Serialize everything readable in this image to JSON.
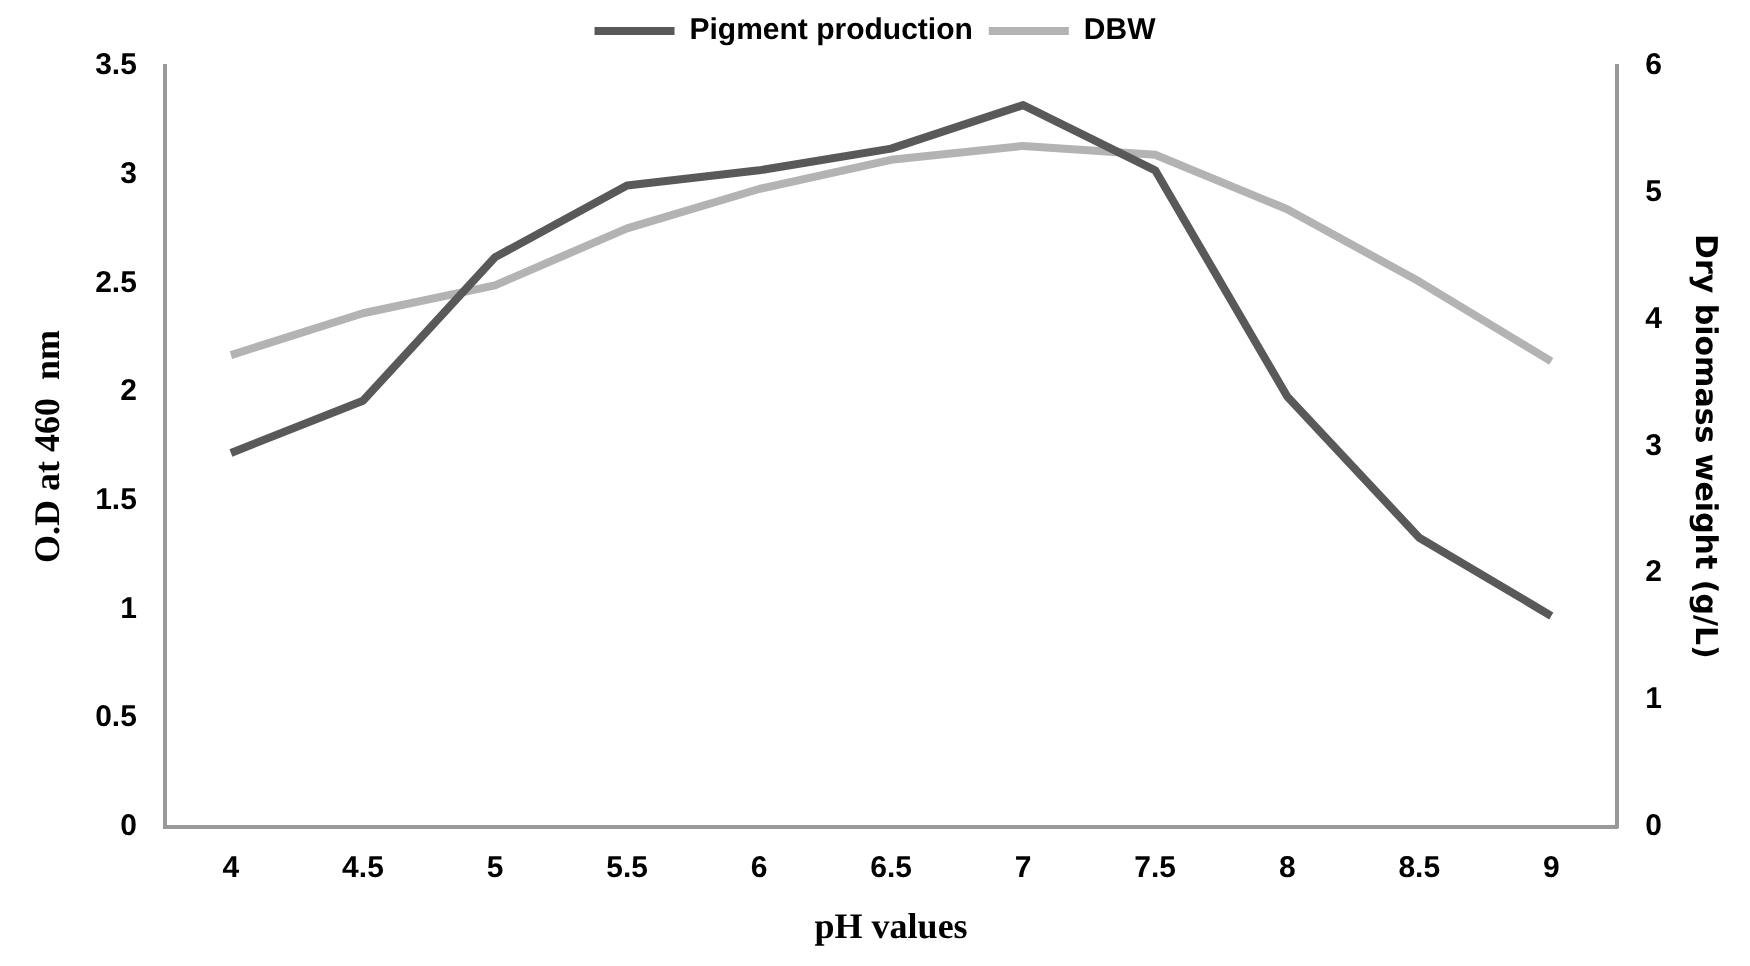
{
  "chart_data": {
    "type": "line",
    "xlabel": "pH values",
    "ylabel": "O.D at 460  nm",
    "y2label": "Dry biomass weight (g/L)",
    "categories": [
      "4",
      "4.5",
      "5",
      "5.5",
      "6",
      "6.5",
      "7",
      "7.5",
      "8",
      "8.5",
      "9"
    ],
    "series": [
      {
        "name": "Pigment production",
        "color": "#595959",
        "values": [
          1.72,
          1.96,
          2.62,
          2.95,
          3.02,
          3.12,
          3.32,
          3.02,
          1.98,
          1.33,
          0.97
        ]
      },
      {
        "name": "DBW",
        "color": "#b3b3b3",
        "axis": "y2",
        "values": [
          3.72,
          4.05,
          4.27,
          4.72,
          5.03,
          5.26,
          5.37,
          5.3,
          4.87,
          4.3,
          3.67
        ]
      }
    ],
    "ylim": [
      0,
      3.5
    ],
    "yticks": [
      0,
      0.5,
      1,
      1.5,
      2,
      2.5,
      3,
      3.5
    ],
    "y2lim": [
      0,
      6
    ],
    "y2ticks": [
      0,
      1,
      2,
      3,
      4,
      5,
      6
    ],
    "grid": false,
    "legend": "top",
    "marker": "none",
    "line_style": "solid"
  }
}
